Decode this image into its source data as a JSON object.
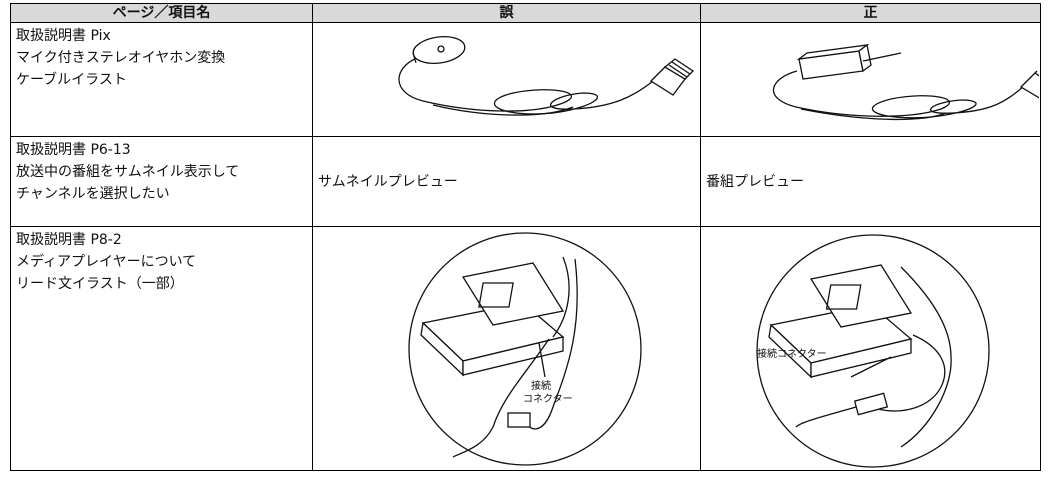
{
  "table": {
    "header": [
      "ページ／項目名",
      "誤",
      "正"
    ],
    "rows": [
      {
        "item": [
          "取扱説明書 Pix",
          "マイク付きステレオイヤホン変換",
          "ケーブルイラスト"
        ]
      },
      {
        "item": [
          "取扱説明書 P6-13",
          "放送中の番組をサムネイル表示して",
          "チャンネルを選択したい"
        ],
        "wrong": "サムネイルプレビュー",
        "right": "番組プレビュー"
      },
      {
        "item": [
          "取扱説明書 P8-2",
          "メディアプレイヤーについて",
          "リード文イラスト（一部）"
        ],
        "wrong_label": [
          "接続",
          "コネクター"
        ],
        "right_label": "接続コネクター"
      }
    ]
  }
}
